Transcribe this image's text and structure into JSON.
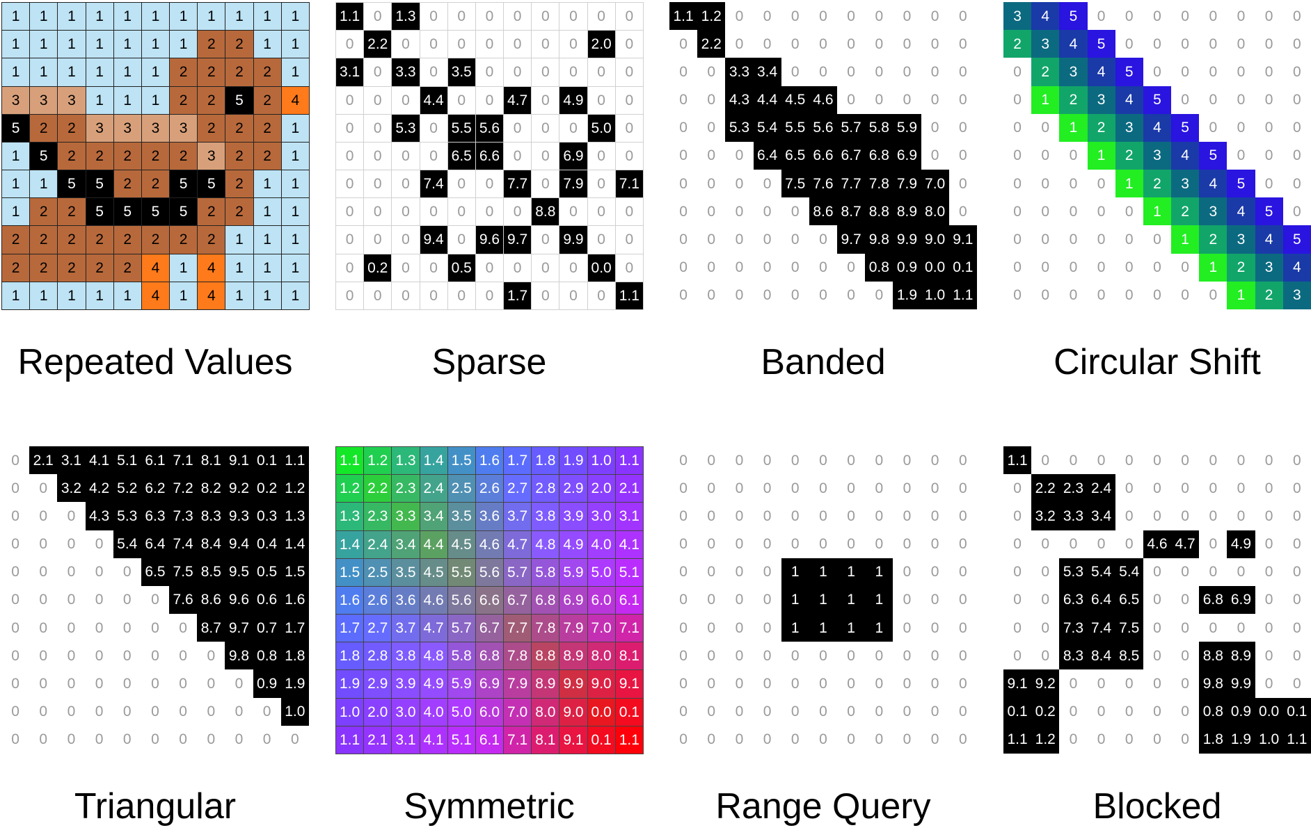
{
  "colors": {
    "repeated": {
      "1": "#bde3f4",
      "2": "#b8693b",
      "3": "#d8a07a",
      "4": "#ff7a1a",
      "5": "#000000"
    },
    "circular": {
      "1": "#22ee22",
      "2": "#12a56a",
      "3": "#0c6a80",
      "4": "#1a3aa8",
      "5": "#2a14e0"
    }
  },
  "panels": [
    {
      "key": "repeated",
      "title": "Repeated Values",
      "style": "repeated",
      "rows": [
        [
          "1",
          "1",
          "1",
          "1",
          "1",
          "1",
          "1",
          "1",
          "1",
          "1",
          "1"
        ],
        [
          "1",
          "1",
          "1",
          "1",
          "1",
          "1",
          "1",
          "2",
          "2",
          "1",
          "1"
        ],
        [
          "1",
          "1",
          "1",
          "1",
          "1",
          "1",
          "2",
          "2",
          "2",
          "2",
          "1"
        ],
        [
          "3",
          "3",
          "3",
          "1",
          "1",
          "1",
          "2",
          "2",
          "5",
          "2",
          "4"
        ],
        [
          "5",
          "2",
          "2",
          "3",
          "3",
          "3",
          "3",
          "2",
          "2",
          "2",
          "1"
        ],
        [
          "1",
          "5",
          "2",
          "2",
          "2",
          "2",
          "2",
          "3",
          "2",
          "2",
          "1"
        ],
        [
          "1",
          "1",
          "5",
          "5",
          "2",
          "2",
          "5",
          "5",
          "2",
          "1",
          "1"
        ],
        [
          "1",
          "2",
          "2",
          "5",
          "5",
          "5",
          "5",
          "2",
          "2",
          "1",
          "1"
        ],
        [
          "2",
          "2",
          "2",
          "2",
          "2",
          "2",
          "2",
          "2",
          "1",
          "1",
          "1"
        ],
        [
          "2",
          "2",
          "2",
          "2",
          "2",
          "4",
          "1",
          "4",
          "1",
          "1",
          "1"
        ],
        [
          "1",
          "1",
          "1",
          "1",
          "1",
          "4",
          "1",
          "4",
          "1",
          "1",
          "1"
        ]
      ]
    },
    {
      "key": "sparse",
      "title": "Sparse",
      "style": "bw-grid",
      "rows": [
        [
          "1.1",
          "0",
          "1.3",
          "0",
          "0",
          "0",
          "0",
          "0",
          "0",
          "0",
          "0"
        ],
        [
          "0",
          "2.2",
          "0",
          "0",
          "0",
          "0",
          "0",
          "0",
          "0",
          "2.0",
          "0"
        ],
        [
          "3.1",
          "0",
          "3.3",
          "0",
          "3.5",
          "0",
          "0",
          "0",
          "0",
          "0",
          "0"
        ],
        [
          "0",
          "0",
          "0",
          "4.4",
          "0",
          "0",
          "4.7",
          "0",
          "4.9",
          "0",
          "0"
        ],
        [
          "0",
          "0",
          "5.3",
          "0",
          "5.5",
          "5.6",
          "0",
          "0",
          "0",
          "5.0",
          "0"
        ],
        [
          "0",
          "0",
          "0",
          "0",
          "6.5",
          "6.6",
          "0",
          "0",
          "6.9",
          "0",
          "0"
        ],
        [
          "0",
          "0",
          "0",
          "7.4",
          "0",
          "0",
          "7.7",
          "0",
          "7.9",
          "0",
          "7.1"
        ],
        [
          "0",
          "0",
          "0",
          "0",
          "0",
          "0",
          "0",
          "8.8",
          "0",
          "0",
          "0"
        ],
        [
          "0",
          "0",
          "0",
          "9.4",
          "0",
          "9.6",
          "9.7",
          "0",
          "9.9",
          "0",
          "0"
        ],
        [
          "0",
          "0.2",
          "0",
          "0",
          "0.5",
          "0",
          "0",
          "0",
          "0",
          "0.0",
          "0"
        ],
        [
          "0",
          "0",
          "0",
          "0",
          "0",
          "0",
          "1.7",
          "0",
          "0",
          "0",
          "1.1"
        ]
      ]
    },
    {
      "key": "banded",
      "title": "Banded",
      "style": "bw",
      "rows": [
        [
          "1.1",
          "1.2",
          "0",
          "0",
          "0",
          "0",
          "0",
          "0",
          "0",
          "0",
          "0"
        ],
        [
          "0",
          "2.2",
          "0",
          "0",
          "0",
          "0",
          "0",
          "0",
          "0",
          "0",
          "0"
        ],
        [
          "0",
          "0",
          "3.3",
          "3.4",
          "0",
          "0",
          "0",
          "0",
          "0",
          "0",
          "0"
        ],
        [
          "0",
          "0",
          "4.3",
          "4.4",
          "4.5",
          "4.6",
          "0",
          "0",
          "0",
          "0",
          "0"
        ],
        [
          "0",
          "0",
          "5.3",
          "5.4",
          "5.5",
          "5.6",
          "5.7",
          "5.8",
          "5.9",
          "0",
          "0"
        ],
        [
          "0",
          "0",
          "0",
          "6.4",
          "6.5",
          "6.6",
          "6.7",
          "6.8",
          "6.9",
          "0",
          "0"
        ],
        [
          "0",
          "0",
          "0",
          "0",
          "7.5",
          "7.6",
          "7.7",
          "7.8",
          "7.9",
          "7.0",
          "0"
        ],
        [
          "0",
          "0",
          "0",
          "0",
          "0",
          "8.6",
          "8.7",
          "8.8",
          "8.9",
          "8.0",
          "0"
        ],
        [
          "0",
          "0",
          "0",
          "0",
          "0",
          "0",
          "9.7",
          "9.8",
          "9.9",
          "9.0",
          "9.1"
        ],
        [
          "0",
          "0",
          "0",
          "0",
          "0",
          "0",
          "0",
          "0.8",
          "0.9",
          "0.0",
          "0.1"
        ],
        [
          "0",
          "0",
          "0",
          "0",
          "0",
          "0",
          "0",
          "0",
          "1.9",
          "1.0",
          "1.1"
        ]
      ]
    },
    {
      "key": "circular",
      "title": "Circular Shift",
      "style": "circular",
      "rows": [
        [
          "3",
          "4",
          "5",
          "0",
          "0",
          "0",
          "0",
          "0",
          "0",
          "0",
          "0"
        ],
        [
          "2",
          "3",
          "4",
          "5",
          "0",
          "0",
          "0",
          "0",
          "0",
          "0",
          "0"
        ],
        [
          "0",
          "2",
          "3",
          "4",
          "5",
          "0",
          "0",
          "0",
          "0",
          "0",
          "0"
        ],
        [
          "0",
          "1",
          "2",
          "3",
          "4",
          "5",
          "0",
          "0",
          "0",
          "0",
          "0"
        ],
        [
          "0",
          "0",
          "1",
          "2",
          "3",
          "4",
          "5",
          "0",
          "0",
          "0",
          "0"
        ],
        [
          "0",
          "0",
          "0",
          "1",
          "2",
          "3",
          "4",
          "5",
          "0",
          "0",
          "0"
        ],
        [
          "0",
          "0",
          "0",
          "0",
          "1",
          "2",
          "3",
          "4",
          "5",
          "0",
          "0"
        ],
        [
          "0",
          "0",
          "0",
          "0",
          "0",
          "1",
          "2",
          "3",
          "4",
          "5",
          "0"
        ],
        [
          "0",
          "0",
          "0",
          "0",
          "0",
          "0",
          "1",
          "2",
          "3",
          "4",
          "5"
        ],
        [
          "0",
          "0",
          "0",
          "0",
          "0",
          "0",
          "0",
          "1",
          "2",
          "3",
          "4"
        ],
        [
          "0",
          "0",
          "0",
          "0",
          "0",
          "0",
          "0",
          "0",
          "1",
          "2",
          "3"
        ]
      ]
    },
    {
      "key": "triangular",
      "title": "Triangular",
      "style": "bw",
      "rows": [
        [
          "0",
          "2.1",
          "3.1",
          "4.1",
          "5.1",
          "6.1",
          "7.1",
          "8.1",
          "9.1",
          "0.1",
          "1.1"
        ],
        [
          "0",
          "0",
          "3.2",
          "4.2",
          "5.2",
          "6.2",
          "7.2",
          "8.2",
          "9.2",
          "0.2",
          "1.2"
        ],
        [
          "0",
          "0",
          "0",
          "4.3",
          "5.3",
          "6.3",
          "7.3",
          "8.3",
          "9.3",
          "0.3",
          "1.3"
        ],
        [
          "0",
          "0",
          "0",
          "0",
          "5.4",
          "6.4",
          "7.4",
          "8.4",
          "9.4",
          "0.4",
          "1.4"
        ],
        [
          "0",
          "0",
          "0",
          "0",
          "0",
          "6.5",
          "7.5",
          "8.5",
          "9.5",
          "0.5",
          "1.5"
        ],
        [
          "0",
          "0",
          "0",
          "0",
          "0",
          "0",
          "7.6",
          "8.6",
          "9.6",
          "0.6",
          "1.6"
        ],
        [
          "0",
          "0",
          "0",
          "0",
          "0",
          "0",
          "0",
          "8.7",
          "9.7",
          "0.7",
          "1.7"
        ],
        [
          "0",
          "0",
          "0",
          "0",
          "0",
          "0",
          "0",
          "0",
          "9.8",
          "0.8",
          "1.8"
        ],
        [
          "0",
          "0",
          "0",
          "0",
          "0",
          "0",
          "0",
          "0",
          "0",
          "0.9",
          "1.9"
        ],
        [
          "0",
          "0",
          "0",
          "0",
          "0",
          "0",
          "0",
          "0",
          "0",
          "0",
          "1.0"
        ],
        [
          "0",
          "0",
          "0",
          "0",
          "0",
          "0",
          "0",
          "0",
          "0",
          "0",
          "0"
        ]
      ]
    },
    {
      "key": "symmetric",
      "title": "Symmetric",
      "style": "symmetric",
      "rows": [
        [
          "1.1",
          "1.2",
          "1.3",
          "1.4",
          "1.5",
          "1.6",
          "1.7",
          "1.8",
          "1.9",
          "1.0",
          "1.1"
        ],
        [
          "1.2",
          "2.2",
          "2.3",
          "2.4",
          "2.5",
          "2.6",
          "2.7",
          "2.8",
          "2.9",
          "2.0",
          "2.1"
        ],
        [
          "1.3",
          "2.3",
          "3.3",
          "3.4",
          "3.5",
          "3.6",
          "3.7",
          "3.8",
          "3.9",
          "3.0",
          "3.1"
        ],
        [
          "1.4",
          "2.4",
          "3.4",
          "4.4",
          "4.5",
          "4.6",
          "4.7",
          "4.8",
          "4.9",
          "4.0",
          "4.1"
        ],
        [
          "1.5",
          "2.5",
          "3.5",
          "4.5",
          "5.5",
          "5.6",
          "5.7",
          "5.8",
          "5.9",
          "5.0",
          "5.1"
        ],
        [
          "1.6",
          "2.6",
          "3.6",
          "4.6",
          "5.6",
          "6.6",
          "6.7",
          "6.8",
          "6.9",
          "6.0",
          "6.1"
        ],
        [
          "1.7",
          "2.7",
          "3.7",
          "4.7",
          "5.7",
          "6.7",
          "7.7",
          "7.8",
          "7.9",
          "7.0",
          "7.1"
        ],
        [
          "1.8",
          "2.8",
          "3.8",
          "4.8",
          "5.8",
          "6.8",
          "7.8",
          "8.8",
          "8.9",
          "8.0",
          "8.1"
        ],
        [
          "1.9",
          "2.9",
          "3.9",
          "4.9",
          "5.9",
          "6.9",
          "7.9",
          "8.9",
          "9.9",
          "9.0",
          "9.1"
        ],
        [
          "1.0",
          "2.0",
          "3.0",
          "4.0",
          "5.0",
          "6.0",
          "7.0",
          "8.0",
          "9.0",
          "0.0",
          "0.1"
        ],
        [
          "1.1",
          "2.1",
          "3.1",
          "4.1",
          "5.1",
          "6.1",
          "7.1",
          "8.1",
          "9.1",
          "0.1",
          "1.1"
        ]
      ]
    },
    {
      "key": "range",
      "title": "Range Query",
      "style": "bw",
      "rows": [
        [
          "0",
          "0",
          "0",
          "0",
          "0",
          "0",
          "0",
          "0",
          "0",
          "0",
          "0"
        ],
        [
          "0",
          "0",
          "0",
          "0",
          "0",
          "0",
          "0",
          "0",
          "0",
          "0",
          "0"
        ],
        [
          "0",
          "0",
          "0",
          "0",
          "0",
          "0",
          "0",
          "0",
          "0",
          "0",
          "0"
        ],
        [
          "0",
          "0",
          "0",
          "0",
          "0",
          "0",
          "0",
          "0",
          "0",
          "0",
          "0"
        ],
        [
          "0",
          "0",
          "0",
          "0",
          "1",
          "1",
          "1",
          "1",
          "0",
          "0",
          "0"
        ],
        [
          "0",
          "0",
          "0",
          "0",
          "1",
          "1",
          "1",
          "1",
          "0",
          "0",
          "0"
        ],
        [
          "0",
          "0",
          "0",
          "0",
          "1",
          "1",
          "1",
          "1",
          "0",
          "0",
          "0"
        ],
        [
          "0",
          "0",
          "0",
          "0",
          "0",
          "0",
          "0",
          "0",
          "0",
          "0",
          "0"
        ],
        [
          "0",
          "0",
          "0",
          "0",
          "0",
          "0",
          "0",
          "0",
          "0",
          "0",
          "0"
        ],
        [
          "0",
          "0",
          "0",
          "0",
          "0",
          "0",
          "0",
          "0",
          "0",
          "0",
          "0"
        ],
        [
          "0",
          "0",
          "0",
          "0",
          "0",
          "0",
          "0",
          "0",
          "0",
          "0",
          "0"
        ]
      ]
    },
    {
      "key": "blocked",
      "title": "Blocked",
      "style": "bw",
      "rows": [
        [
          "1.1",
          "0",
          "0",
          "0",
          "0",
          "0",
          "0",
          "0",
          "0",
          "0",
          "0"
        ],
        [
          "0",
          "2.2",
          "2.3",
          "2.4",
          "0",
          "0",
          "0",
          "0",
          "0",
          "0",
          "0"
        ],
        [
          "0",
          "3.2",
          "3.3",
          "3.4",
          "0",
          "0",
          "0",
          "0",
          "0",
          "0",
          "0"
        ],
        [
          "0",
          "0",
          "0",
          "0",
          "0",
          "4.6",
          "4.7",
          "0",
          "4.9",
          "0",
          "0"
        ],
        [
          "0",
          "0",
          "5.3",
          "5.4",
          "5.4",
          "0",
          "0",
          "0",
          "0",
          "0",
          "0"
        ],
        [
          "0",
          "0",
          "6.3",
          "6.4",
          "6.5",
          "0",
          "0",
          "6.8",
          "6.9",
          "0",
          "0"
        ],
        [
          "0",
          "0",
          "7.3",
          "7.4",
          "7.5",
          "0",
          "0",
          "0",
          "0",
          "0",
          "0"
        ],
        [
          "0",
          "0",
          "8.3",
          "8.4",
          "8.5",
          "0",
          "0",
          "8.8",
          "8.9",
          "0",
          "0"
        ],
        [
          "9.1",
          "9.2",
          "0",
          "0",
          "0",
          "0",
          "0",
          "9.8",
          "9.9",
          "0",
          "0"
        ],
        [
          "0.1",
          "0.2",
          "0",
          "0",
          "0",
          "0",
          "0",
          "0.8",
          "0.9",
          "0.0",
          "0.1"
        ],
        [
          "1.1",
          "1.2",
          "0",
          "0",
          "0",
          "0",
          "0",
          "1.8",
          "1.9",
          "1.0",
          "1.1"
        ]
      ]
    }
  ]
}
